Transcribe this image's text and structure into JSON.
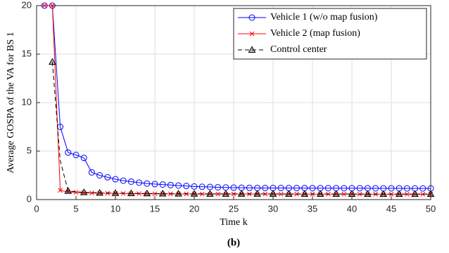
{
  "chart_data": {
    "type": "line",
    "xlabel": "Time k",
    "ylabel": "Average GOSPA of the VA for BS 1",
    "caption": "(b)",
    "x": [
      1,
      2,
      3,
      4,
      5,
      6,
      7,
      8,
      9,
      10,
      11,
      12,
      13,
      14,
      15,
      16,
      17,
      18,
      19,
      20,
      21,
      22,
      23,
      24,
      25,
      26,
      27,
      28,
      29,
      30,
      31,
      32,
      33,
      34,
      35,
      36,
      37,
      38,
      39,
      40,
      41,
      42,
      43,
      44,
      45,
      46,
      47,
      48,
      49,
      50
    ],
    "series": [
      {
        "name": "Vehicle 1 (w/o map fusion)",
        "color": "#0000ff",
        "marker": "o",
        "dash": false,
        "values": [
          20,
          20,
          7.5,
          4.85,
          4.6,
          4.3,
          2.8,
          2.5,
          2.3,
          2.1,
          1.95,
          1.85,
          1.75,
          1.65,
          1.6,
          1.55,
          1.5,
          1.45,
          1.4,
          1.35,
          1.32,
          1.3,
          1.27,
          1.25,
          1.23,
          1.22,
          1.21,
          1.2,
          1.2,
          1.2,
          1.2,
          1.19,
          1.19,
          1.19,
          1.18,
          1.18,
          1.18,
          1.18,
          1.17,
          1.17,
          1.17,
          1.17,
          1.16,
          1.16,
          1.16,
          1.16,
          1.15,
          1.15,
          1.15,
          1.15
        ]
      },
      {
        "name": "Vehicle 2 (map fusion)",
        "color": "#ff0000",
        "marker": "x",
        "dash": false,
        "values": [
          20,
          20,
          0.95,
          0.8,
          0.75,
          0.7,
          0.68,
          0.66,
          0.65,
          0.64,
          0.63,
          0.62,
          0.61,
          0.6,
          0.6,
          0.59,
          0.59,
          0.58,
          0.58,
          0.58,
          0.57,
          0.57,
          0.57,
          0.57,
          0.57,
          0.57,
          0.57,
          0.57,
          0.57,
          0.57,
          0.56,
          0.56,
          0.56,
          0.56,
          0.56,
          0.56,
          0.56,
          0.56,
          0.56,
          0.56,
          0.55,
          0.55,
          0.55,
          0.55,
          0.55,
          0.55,
          0.55,
          0.55,
          0.55,
          0.55
        ]
      },
      {
        "name": "Control center",
        "color": "#000000",
        "marker": "^",
        "dash": true,
        "markevery": 2,
        "values": [
          null,
          14.2,
          4,
          0.9,
          0.8,
          0.75,
          0.72,
          0.7,
          0.68,
          0.67,
          0.66,
          0.65,
          0.64,
          0.63,
          0.62,
          0.62,
          0.61,
          0.61,
          0.6,
          0.6,
          0.6,
          0.59,
          0.59,
          0.59,
          0.59,
          0.59,
          0.59,
          0.59,
          0.59,
          0.59,
          0.58,
          0.58,
          0.58,
          0.58,
          0.58,
          0.58,
          0.58,
          0.58,
          0.58,
          0.58,
          0.57,
          0.57,
          0.57,
          0.57,
          0.57,
          0.57,
          0.57,
          0.57,
          0.57,
          0.57
        ]
      }
    ],
    "xlim": [
      0,
      50
    ],
    "xticks": [
      0,
      5,
      10,
      15,
      20,
      25,
      30,
      35,
      40,
      45,
      50
    ],
    "ylim": [
      0,
      20
    ],
    "yticks": [
      0,
      5,
      10,
      15,
      20
    ],
    "grid": true,
    "legend": "upper right"
  }
}
